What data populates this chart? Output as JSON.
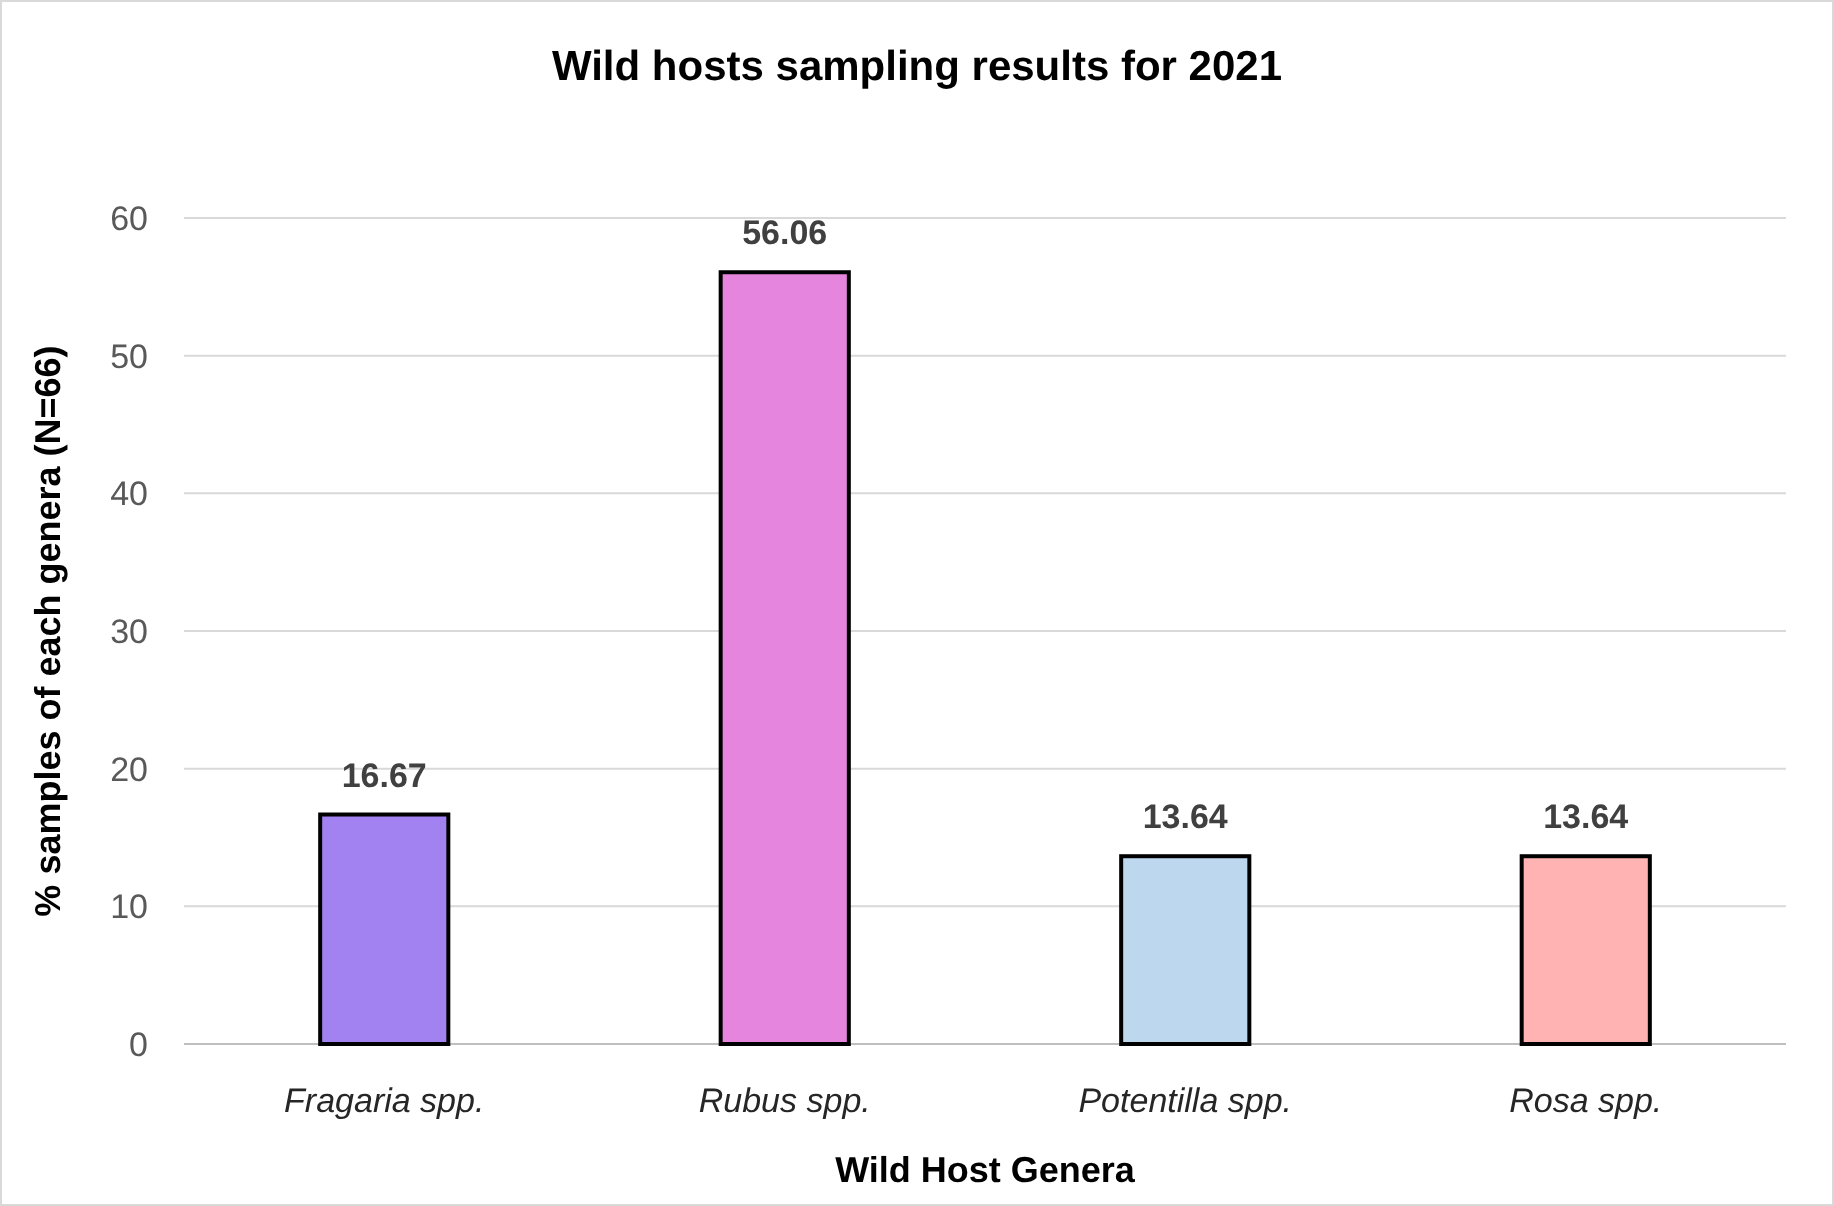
{
  "chart_data": {
    "type": "bar",
    "title": "Wild hosts sampling results for 2021",
    "xlabel": "Wild Host Genera",
    "ylabel": "% samples of each genera (N=66)",
    "categories": [
      "Fragaria spp.",
      "Rubus spp.",
      "Potentilla spp.",
      "Rosa spp."
    ],
    "values": [
      16.67,
      56.06,
      13.64,
      13.64
    ],
    "colors": [
      "#a282f0",
      "#e685dd",
      "#bdd7ee",
      "#ffb3b3"
    ],
    "ylim": [
      0,
      60
    ],
    "yticks": [
      0,
      10,
      20,
      30,
      40,
      50,
      60
    ],
    "grid": "y",
    "data_labels": true
  }
}
